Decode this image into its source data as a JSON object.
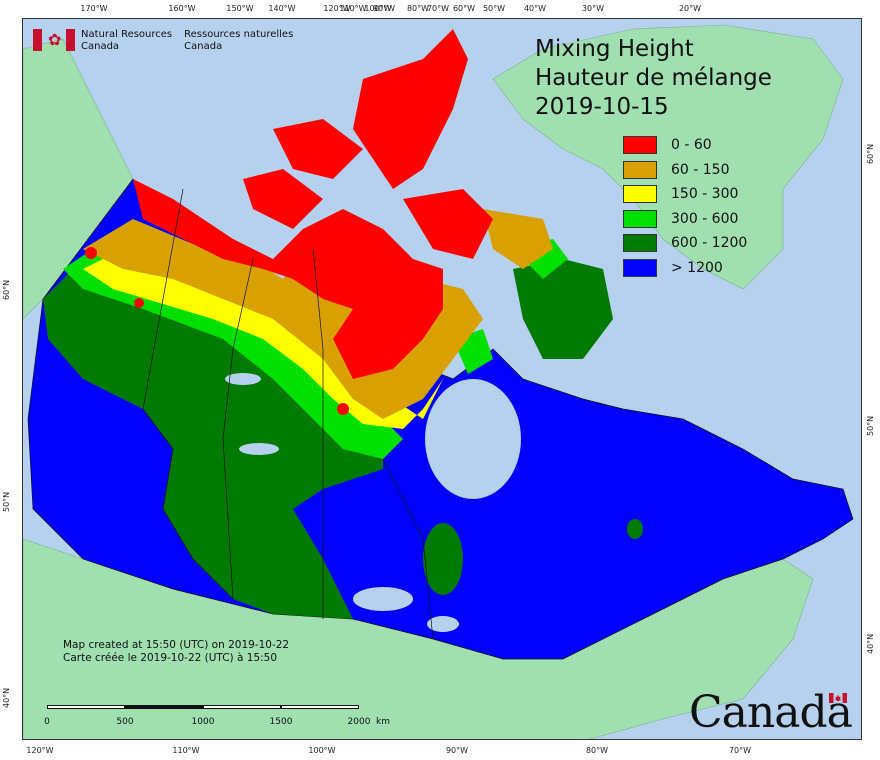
{
  "title": {
    "line1": "Mixing Height",
    "line2": "Hauteur de mélange",
    "date": "2019-10-15"
  },
  "organization": {
    "en_line1": "Natural Resources",
    "en_line2": "Canada",
    "fr_line1": "Ressources naturelles",
    "fr_line2": "Canada"
  },
  "legend": [
    {
      "label": "0 - 60",
      "color": "#ff0000"
    },
    {
      "label": "60 - 150",
      "color": "#d8a000"
    },
    {
      "label": "150 - 300",
      "color": "#ffff00"
    },
    {
      "label": "300 - 600",
      "color": "#00e000"
    },
    {
      "label": "600 - 1200",
      "color": "#007a00"
    },
    {
      "label": "> 1200",
      "color": "#0000ff"
    }
  ],
  "note": {
    "en": "Map created at 15:50 (UTC) on 2019-10-22",
    "fr": "Carte créée le 2019-10-22 (UTC) à 15:50"
  },
  "scale": {
    "labels": [
      "0",
      "500",
      "1000",
      "1500",
      "2000"
    ],
    "unit": "km"
  },
  "wordmark": "Canada",
  "ticks": {
    "top": [
      "170°W",
      "160°W",
      "150°W",
      "140°W",
      "120°W",
      "110°W",
      "100°W",
      "90°W",
      "80°W",
      "70°W",
      "60°W",
      "50°W",
      "40°W",
      "30°W",
      "20°W"
    ],
    "bottom": [
      "120°W",
      "110°W",
      "100°W",
      "90°W",
      "80°W",
      "70°W"
    ],
    "left": [
      "60°N",
      "50°N",
      "40°N"
    ],
    "right": [
      "60°N",
      "50°N",
      "40°N"
    ]
  },
  "colors": {
    "ocean": "#b5d1ee",
    "land": "#9fdfb0"
  }
}
